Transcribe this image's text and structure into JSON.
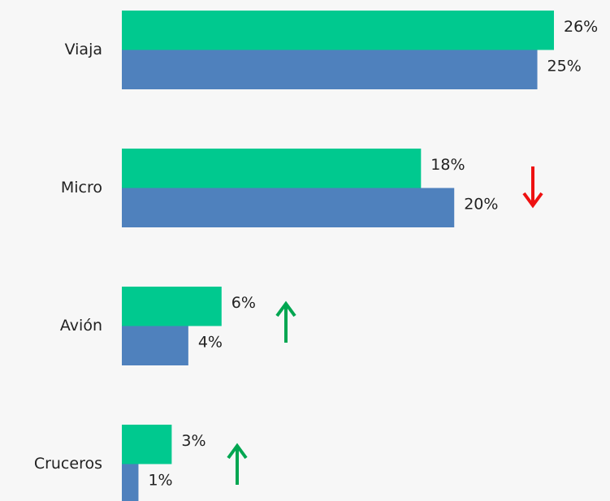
{
  "chart_data": {
    "type": "bar",
    "orientation": "horizontal",
    "categories": [
      "Viaja",
      "Micro",
      "Avión",
      "Cruceros"
    ],
    "series": [
      {
        "color": "#00c98f",
        "values": [
          26,
          18,
          6,
          3
        ],
        "value_labels": [
          "26%",
          "18%",
          "6%",
          "3%"
        ]
      },
      {
        "color": "#4f81bd",
        "values": [
          25,
          20,
          4,
          1
        ],
        "value_labels": [
          "25%",
          "20%",
          "4%",
          "1%"
        ]
      }
    ]
  }
}
